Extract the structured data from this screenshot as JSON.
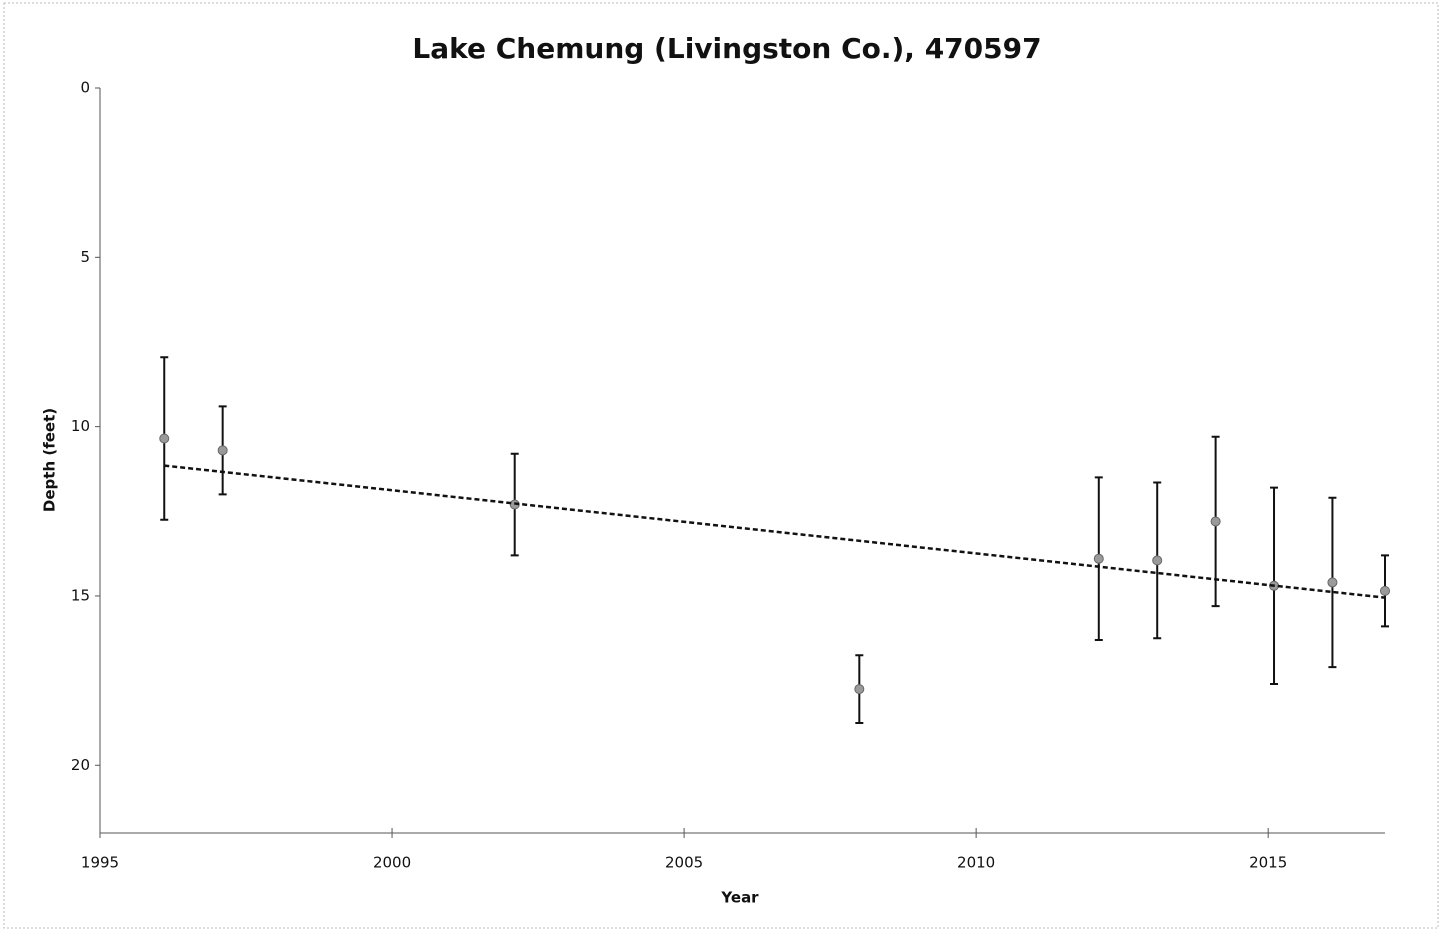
{
  "chart_data": {
    "type": "scatter",
    "title": "Lake Chemung (Livingston Co.), 470597",
    "x_label": "Year",
    "y_label": "Depth (feet)",
    "x": [
      1996.1,
      1997.1,
      2002.1,
      2008.0,
      2012.1,
      2013.1,
      2014.1,
      2015.1,
      2016.1,
      2017.0
    ],
    "series": [
      {
        "name": "Depth",
        "color": "#9a9a9a",
        "values": [
          10.35,
          10.7,
          12.3,
          17.75,
          13.9,
          13.95,
          12.8,
          14.7,
          14.6,
          14.85
        ],
        "errors": [
          2.4,
          1.3,
          1.5,
          1.0,
          2.4,
          2.3,
          2.5,
          2.9,
          2.5,
          1.05
        ]
      }
    ],
    "trendline": {
      "x": [
        1996.1,
        2017.0
      ],
      "values": [
        11.15,
        15.05
      ],
      "color": "#111111"
    },
    "xlim": [
      1995,
      2017
    ],
    "xticks": [
      1995,
      2000,
      2005,
      2010,
      2015
    ],
    "ylim": [
      0,
      22
    ],
    "yticks": [
      0,
      5,
      10,
      15,
      20
    ],
    "y_inverted": true
  }
}
